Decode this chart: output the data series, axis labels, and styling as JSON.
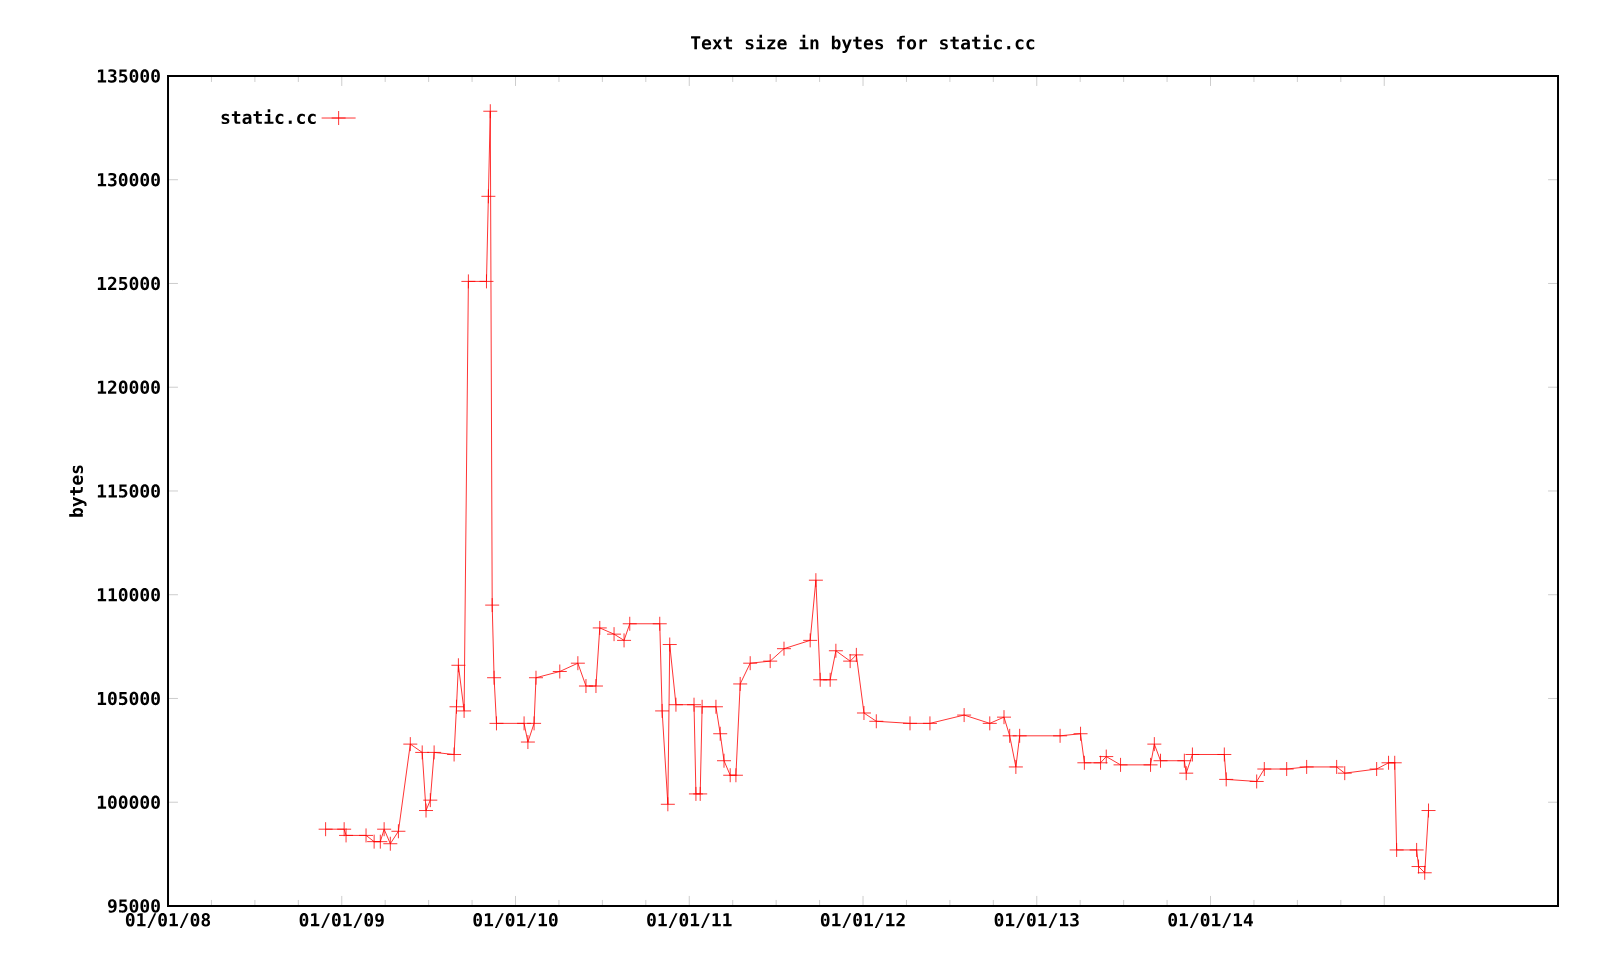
{
  "chart_data": {
    "type": "line",
    "title": "Text size in bytes for static.cc",
    "ylabel": "bytes",
    "xlim": [
      "2008-01-01",
      "2016-01-01"
    ],
    "xticks": [
      {
        "value": "2008-01-01",
        "label": "01/01/08"
      },
      {
        "value": "2009-01-01",
        "label": "01/01/09"
      },
      {
        "value": "2010-01-01",
        "label": "01/01/10"
      },
      {
        "value": "2011-01-01",
        "label": "01/01/11"
      },
      {
        "value": "2012-01-01",
        "label": "01/01/12"
      },
      {
        "value": "2013-01-01",
        "label": "01/01/13"
      },
      {
        "value": "2014-01-01",
        "label": "01/01/14"
      },
      {
        "value": "2015-01-01",
        "label": null
      }
    ],
    "ylim": [
      95000,
      135000
    ],
    "yticks": [
      95000,
      100000,
      105000,
      110000,
      115000,
      120000,
      125000,
      130000,
      135000
    ],
    "legend": "top left",
    "marker": "cross",
    "line_style": "solid",
    "grid": false,
    "series": [
      {
        "name": "static.cc",
        "color": "#ff0000",
        "x": [
          "2008-11-28",
          "2009-01-06",
          "2009-01-10",
          "2009-02-21",
          "2009-03-10",
          "2009-03-23",
          "2009-03-31",
          "2009-04-13",
          "2009-04-30",
          "2009-05-25",
          "2009-06-19",
          "2009-06-27",
          "2009-07-06",
          "2009-07-14",
          "2009-08-25",
          "2009-08-30",
          "2009-09-03",
          "2009-09-15",
          "2009-09-24",
          "2009-11-01",
          "2009-11-05",
          "2009-11-09",
          "2009-11-13",
          "2009-11-17",
          "2009-11-22",
          "2010-01-19",
          "2010-01-27",
          "2010-02-09",
          "2010-02-13",
          "2010-04-04",
          "2010-05-12",
          "2010-05-29",
          "2010-06-19",
          "2010-06-27",
          "2010-07-27",
          "2010-08-17",
          "2010-08-29",
          "2010-10-31",
          "2010-11-05",
          "2010-11-17",
          "2010-11-21",
          "2010-12-04",
          "2011-01-11",
          "2011-01-15",
          "2011-01-24",
          "2011-01-28",
          "2011-02-26",
          "2011-03-07",
          "2011-03-15",
          "2011-03-28",
          "2011-04-09",
          "2011-04-18",
          "2011-05-09",
          "2011-06-20",
          "2011-07-19",
          "2011-09-12",
          "2011-09-24",
          "2011-10-03",
          "2011-10-24",
          "2011-11-05",
          "2011-12-05",
          "2011-12-18",
          "2012-01-03",
          "2012-01-29",
          "2012-04-09",
          "2012-05-21",
          "2012-08-01",
          "2012-09-24",
          "2012-10-24",
          "2012-11-05",
          "2012-11-18",
          "2012-11-26",
          "2013-02-19",
          "2013-04-03",
          "2013-04-11",
          "2013-05-15",
          "2013-05-27",
          "2013-06-26",
          "2013-08-28",
          "2013-09-05",
          "2013-09-18",
          "2013-11-07",
          "2013-11-11",
          "2013-11-24",
          "2014-01-30",
          "2014-02-03",
          "2014-04-08",
          "2014-04-24",
          "2014-06-10",
          "2014-07-22",
          "2014-09-23",
          "2014-10-10",
          "2014-12-16",
          "2015-01-10",
          "2015-01-23",
          "2015-01-27",
          "2015-03-10",
          "2015-03-14",
          "2015-03-27",
          "2015-04-04"
        ],
        "values": [
          98700,
          98700,
          98400,
          98400,
          98100,
          98100,
          98700,
          98000,
          98600,
          102800,
          102400,
          99600,
          100100,
          102400,
          102300,
          104600,
          106600,
          104400,
          125100,
          125100,
          129200,
          133300,
          109500,
          106000,
          103800,
          103800,
          102900,
          103800,
          106000,
          106300,
          106700,
          105600,
          105600,
          108400,
          108100,
          107800,
          108600,
          108600,
          104400,
          99900,
          107600,
          104700,
          104700,
          100400,
          100400,
          104600,
          104600,
          103300,
          102000,
          101300,
          101300,
          105700,
          106700,
          106800,
          107400,
          107800,
          110700,
          105900,
          105900,
          107300,
          106800,
          107100,
          104300,
          103900,
          103800,
          103800,
          104200,
          103800,
          104100,
          103200,
          101700,
          103200,
          103200,
          103300,
          101900,
          101900,
          102200,
          101800,
          101800,
          102800,
          102000,
          102000,
          101400,
          102300,
          102300,
          101100,
          101000,
          101600,
          101600,
          101700,
          101700,
          101400,
          101600,
          101900,
          101900,
          97700,
          97700,
          96900,
          96600,
          99600
        ]
      }
    ]
  }
}
